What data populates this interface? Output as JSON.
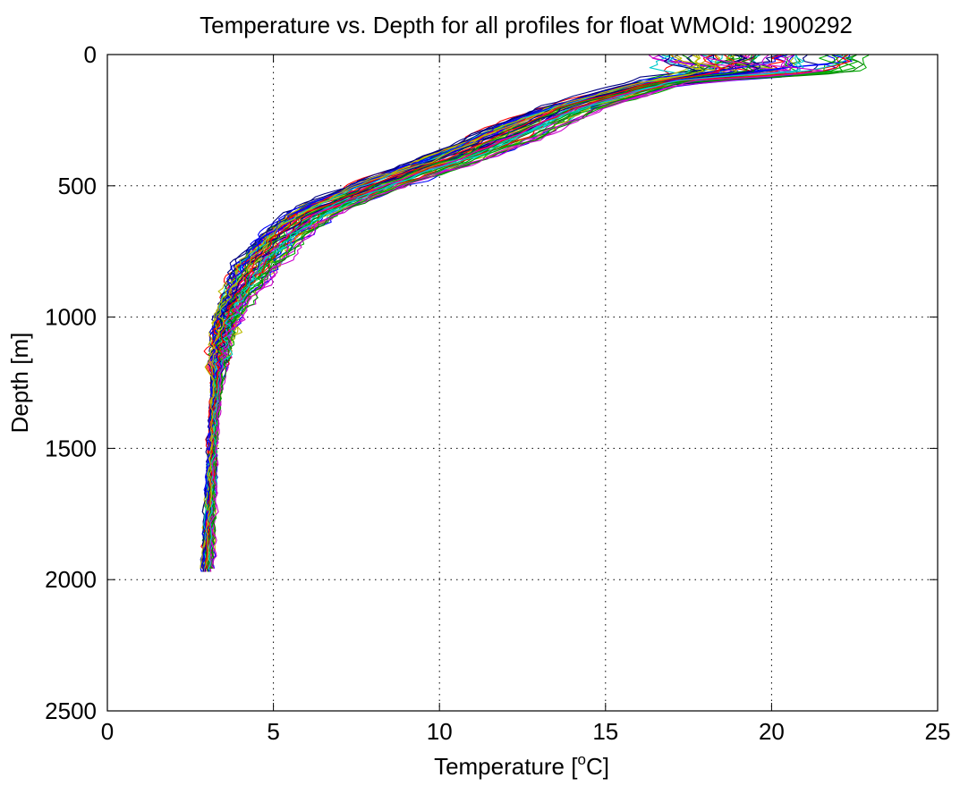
{
  "chart_data": {
    "type": "line",
    "title": "Temperature vs. Depth for all profiles for float WMOId: 1900292",
    "xlabel_main": "Temperature [",
    "xlabel_sup": "o",
    "xlabel_end": "C]",
    "ylabel": "Depth [m]",
    "xlim": [
      0,
      25
    ],
    "ylim": [
      0,
      2500
    ],
    "y_reversed": true,
    "grid": true,
    "xticks": [
      "0",
      "5",
      "10",
      "15",
      "20",
      "25"
    ],
    "yticks": [
      "0",
      "500",
      "1000",
      "1500",
      "2000",
      "2500"
    ],
    "xtick_values": [
      0,
      5,
      10,
      15,
      20,
      25
    ],
    "ytick_values": [
      0,
      500,
      1000,
      1500,
      2000,
      2500
    ],
    "series_colors": [
      "#0000ff",
      "#00aa00",
      "#ff0000",
      "#00cccc",
      "#cc00cc",
      "#bbbb00",
      "#000080",
      "#008000"
    ],
    "profile_count": 70,
    "envelope": {
      "depth": [
        0,
        60,
        100,
        150,
        200,
        300,
        400,
        500,
        600,
        700,
        800,
        900,
        1000,
        1100,
        1200,
        1400,
        1600,
        1800,
        1970
      ],
      "warm_edge_temp": [
        23.0,
        23.0,
        17.5,
        16.3,
        14.9,
        13.4,
        11.3,
        9.0,
        7.0,
        5.9,
        5.2,
        4.5,
        3.95,
        3.7,
        3.5,
        3.3,
        3.25,
        3.2,
        3.15
      ],
      "cold_edge_temp": [
        16.3,
        16.3,
        16.0,
        14.5,
        13.0,
        11.0,
        9.3,
        7.2,
        5.4,
        4.5,
        3.8,
        3.5,
        3.3,
        3.2,
        3.15,
        3.1,
        3.0,
        2.95,
        2.85
      ]
    }
  }
}
